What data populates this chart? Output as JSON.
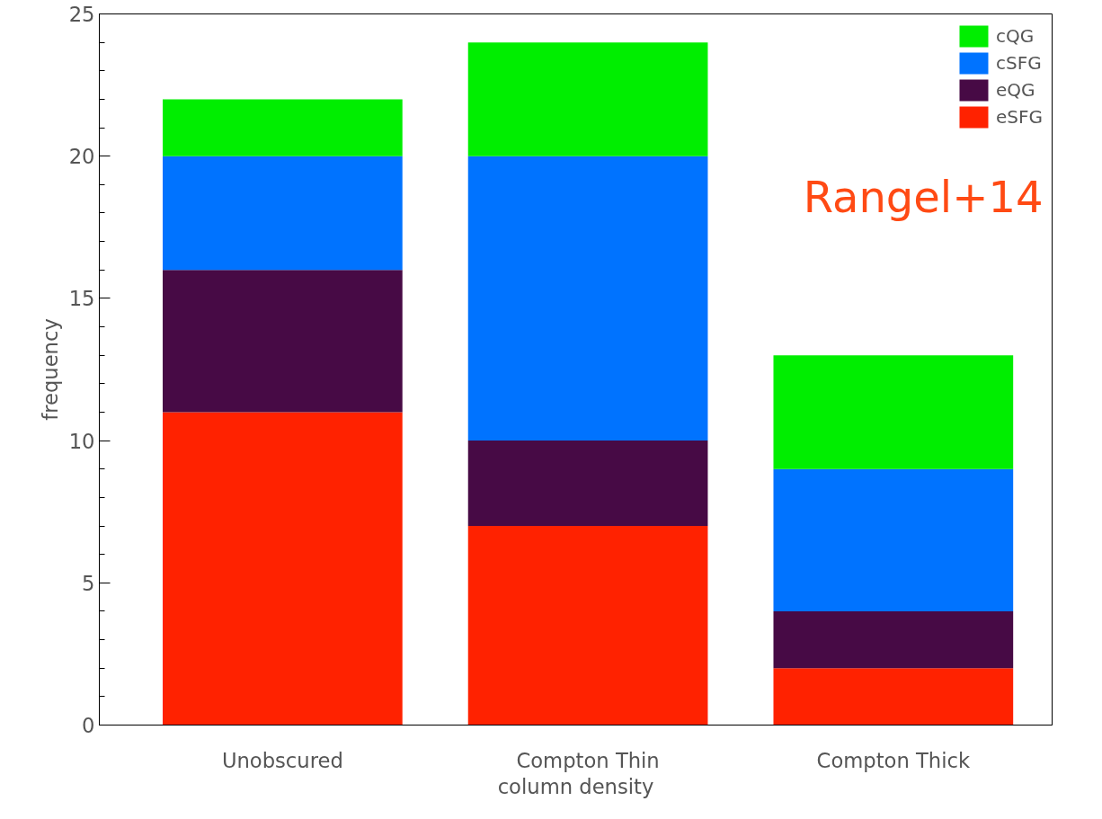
{
  "chart_data": {
    "type": "bar",
    "stacked": true,
    "xlabel": "column density",
    "ylabel": "frequency",
    "categories": [
      "Unobscured",
      "Compton Thin",
      "Compton Thick"
    ],
    "series": [
      {
        "name": "eSFG",
        "color": "#ff2200",
        "values": [
          11,
          7,
          2
        ]
      },
      {
        "name": "eQG",
        "color": "#470a45",
        "values": [
          5,
          3,
          2
        ]
      },
      {
        "name": "cSFG",
        "color": "#0073ff",
        "values": [
          4,
          10,
          5
        ]
      },
      {
        "name": "cQG",
        "color": "#00ee00",
        "values": [
          2,
          4,
          4
        ]
      }
    ],
    "ylim": [
      0,
      25
    ],
    "yticks": [
      0,
      5,
      10,
      15,
      20,
      25
    ],
    "grid": false,
    "legend": "top right",
    "annotations": [
      "Rangel+14"
    ]
  }
}
